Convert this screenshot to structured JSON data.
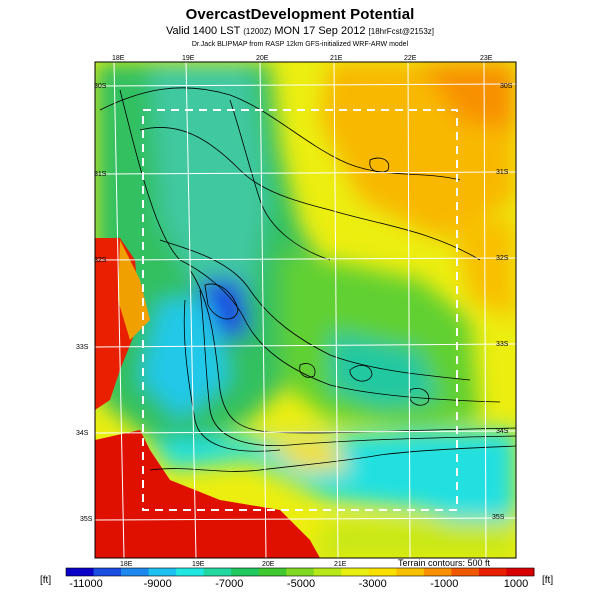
{
  "header": {
    "title": "OvercastDevelopment Potential",
    "subtitle_pre": "Valid 1400 LST",
    "subtitle_small": "(1200Z)",
    "subtitle_mid": "MON 17 Sep 2012",
    "subtitle_tag": "[18hrFcst@2153z]",
    "credit": "Dr.Jack BLIPMAP from RASP 12km GFS-initialized WRF-ARW model"
  },
  "map": {
    "top_lon_labels": [
      "18E",
      "19E",
      "20E",
      "21E",
      "22E",
      "23E"
    ],
    "bottom_lon_labels": [
      "18E",
      "19E",
      "20E",
      "21E"
    ],
    "left_lat_labels": [
      "30S",
      "31S",
      "32S",
      "33S",
      "34S",
      "35S"
    ],
    "right_lat_labels": [
      "30S",
      "31S",
      "32S",
      "33S",
      "34S",
      "35S"
    ],
    "terrain_note": "Terrain contours: 500 ft"
  },
  "colorbar": {
    "unit_left": "[ft]",
    "unit_right": "[ft]",
    "ticks": [
      "-11000",
      "-9000",
      "-7000",
      "-5000",
      "-3000",
      "-1000",
      "1000"
    ],
    "colors": [
      "#0a00c8",
      "#1a4ee0",
      "#1e88ee",
      "#1ec0f0",
      "#20e8e0",
      "#22d8a0",
      "#20c860",
      "#40c830",
      "#80d820",
      "#b8e818",
      "#e8f010",
      "#f8e000",
      "#f8c000",
      "#f89000",
      "#f05800",
      "#e82000",
      "#d80000"
    ]
  }
}
